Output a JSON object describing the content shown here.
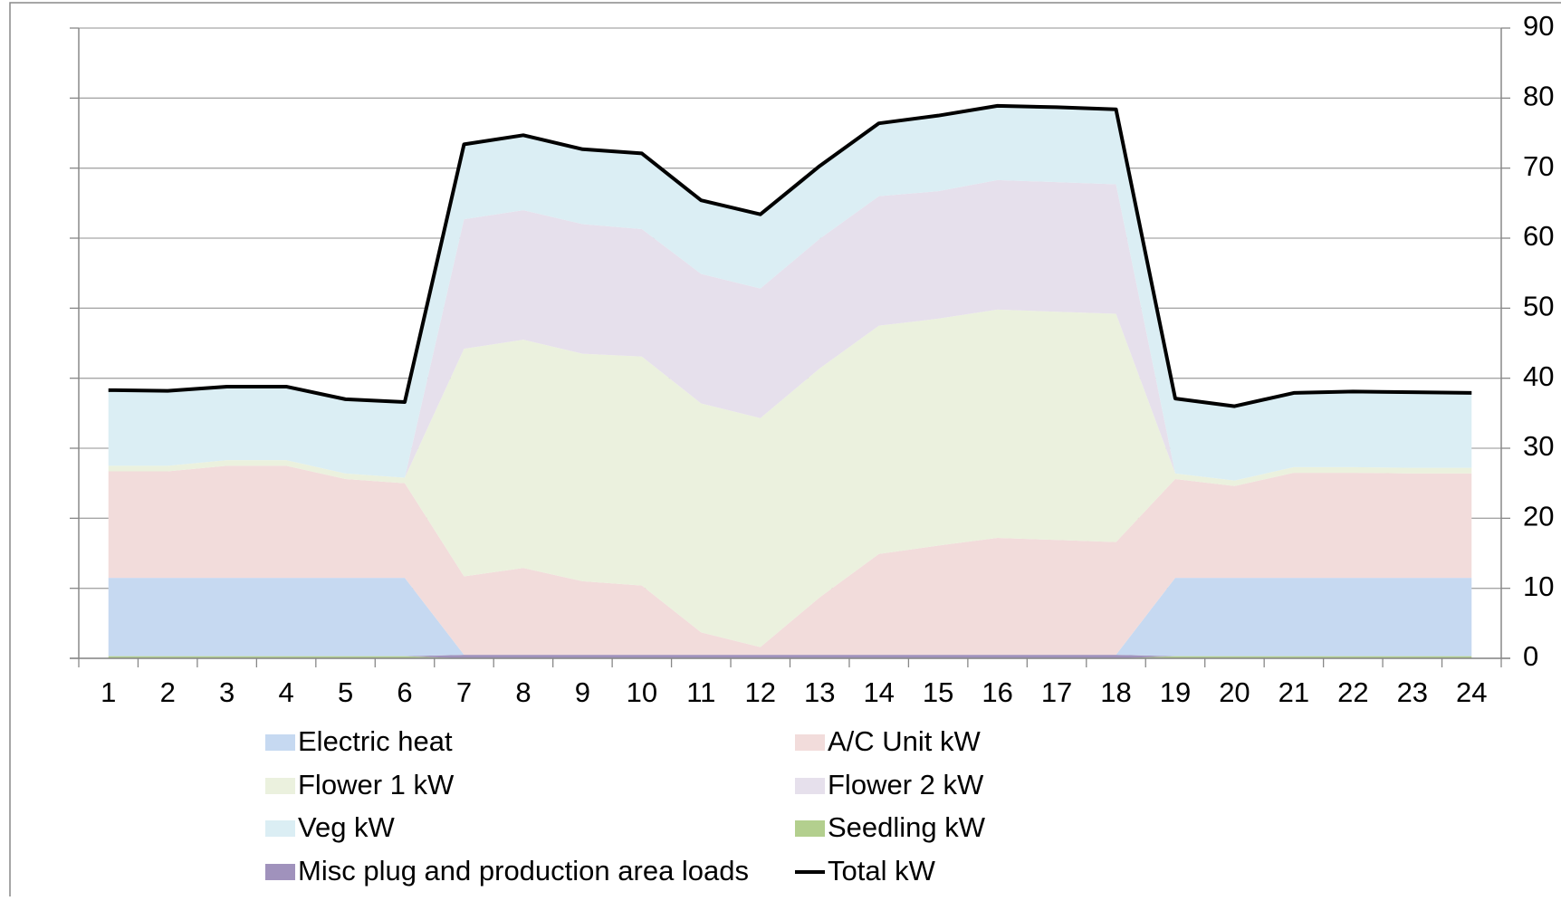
{
  "chart_data": {
    "type": "area",
    "stacked": true,
    "categories": [
      "1",
      "2",
      "3",
      "4",
      "5",
      "6",
      "7",
      "8",
      "9",
      "10",
      "11",
      "12",
      "13",
      "14",
      "15",
      "16",
      "17",
      "18",
      "19",
      "20",
      "21",
      "22",
      "23",
      "24"
    ],
    "series": [
      {
        "name": "Electric heat",
        "type": "area",
        "color": "#c6d9f1",
        "values": [
          11.2,
          11.2,
          11.2,
          11.2,
          11.2,
          11.2,
          0,
          0,
          0,
          0,
          0,
          0,
          0,
          0,
          0,
          0,
          0,
          0,
          11.2,
          11.2,
          11.2,
          11.2,
          11.2,
          11.2
        ]
      },
      {
        "name": "A/C Unit kW",
        "type": "area",
        "color": "#f2dcdb",
        "values": [
          15.2,
          15.2,
          16,
          16,
          14.1,
          13.5,
          11.2,
          12.4,
          10.5,
          9.9,
          3.2,
          1.1,
          8.2,
          14.4,
          15.6,
          16.7,
          16.4,
          16.1,
          14.1,
          13.1,
          15,
          15,
          14.9,
          14.9
        ]
      },
      {
        "name": "Flower 1 kW",
        "type": "area",
        "color": "#ebf1de",
        "values": [
          0.8,
          0.8,
          0.8,
          0.8,
          0.8,
          0.8,
          32.5,
          32.6,
          32.5,
          32.7,
          32.7,
          32.7,
          32.7,
          32.6,
          32.4,
          32.6,
          32.6,
          32.6,
          0.8,
          0.8,
          0.8,
          0.8,
          0.8,
          0.8
        ]
      },
      {
        "name": "Flower 2 kW",
        "type": "area",
        "color": "#e6e0ec",
        "values": [
          0,
          0,
          0,
          0,
          0,
          0,
          18.5,
          18.5,
          18.5,
          18.2,
          18.5,
          18.5,
          18.5,
          18.5,
          18.2,
          18.5,
          18.5,
          18.5,
          0,
          0,
          0,
          0,
          0,
          0
        ]
      },
      {
        "name": "Veg kW",
        "type": "area",
        "color": "#dbeef4",
        "values": [
          10.8,
          10.7,
          10.5,
          10.5,
          10.6,
          10.8,
          10.7,
          10.7,
          10.7,
          10.8,
          10.5,
          10.6,
          10.4,
          10.4,
          10.8,
          10.6,
          10.7,
          10.7,
          10.7,
          10.6,
          10.6,
          10.8,
          10.8,
          10.7
        ]
      },
      {
        "name": "Seedling kW",
        "type": "area",
        "color": "#b3cf8e",
        "values": [
          0.3,
          0.3,
          0.3,
          0.3,
          0.3,
          0.3,
          0,
          0,
          0,
          0,
          0,
          0,
          0,
          0,
          0,
          0,
          0,
          0,
          0.3,
          0.3,
          0.3,
          0.3,
          0.3,
          0.3
        ]
      },
      {
        "name": "Misc plug and production area loads",
        "type": "area",
        "color": "#a092bc",
        "values": [
          0,
          0,
          0,
          0,
          0,
          0,
          0.5,
          0.5,
          0.5,
          0.5,
          0.5,
          0.5,
          0.5,
          0.5,
          0.5,
          0.5,
          0.5,
          0.5,
          0,
          0,
          0,
          0,
          0,
          0
        ]
      },
      {
        "name": "Total kW",
        "type": "line",
        "color": "#000000",
        "values": [
          38.3,
          38.2,
          38.8,
          38.8,
          37,
          36.6,
          73.4,
          74.7,
          72.7,
          72.1,
          65.4,
          63.4,
          70.3,
          76.4,
          77.5,
          78.9,
          78.7,
          78.4,
          37.1,
          36,
          37.9,
          38.1,
          38,
          37.9
        ]
      }
    ],
    "ylim": [
      0,
      90
    ],
    "yticks": [
      0,
      10,
      20,
      30,
      40,
      50,
      60,
      70,
      80,
      90
    ],
    "y_axis_side": "right",
    "grid": true,
    "legend": "bottom"
  }
}
